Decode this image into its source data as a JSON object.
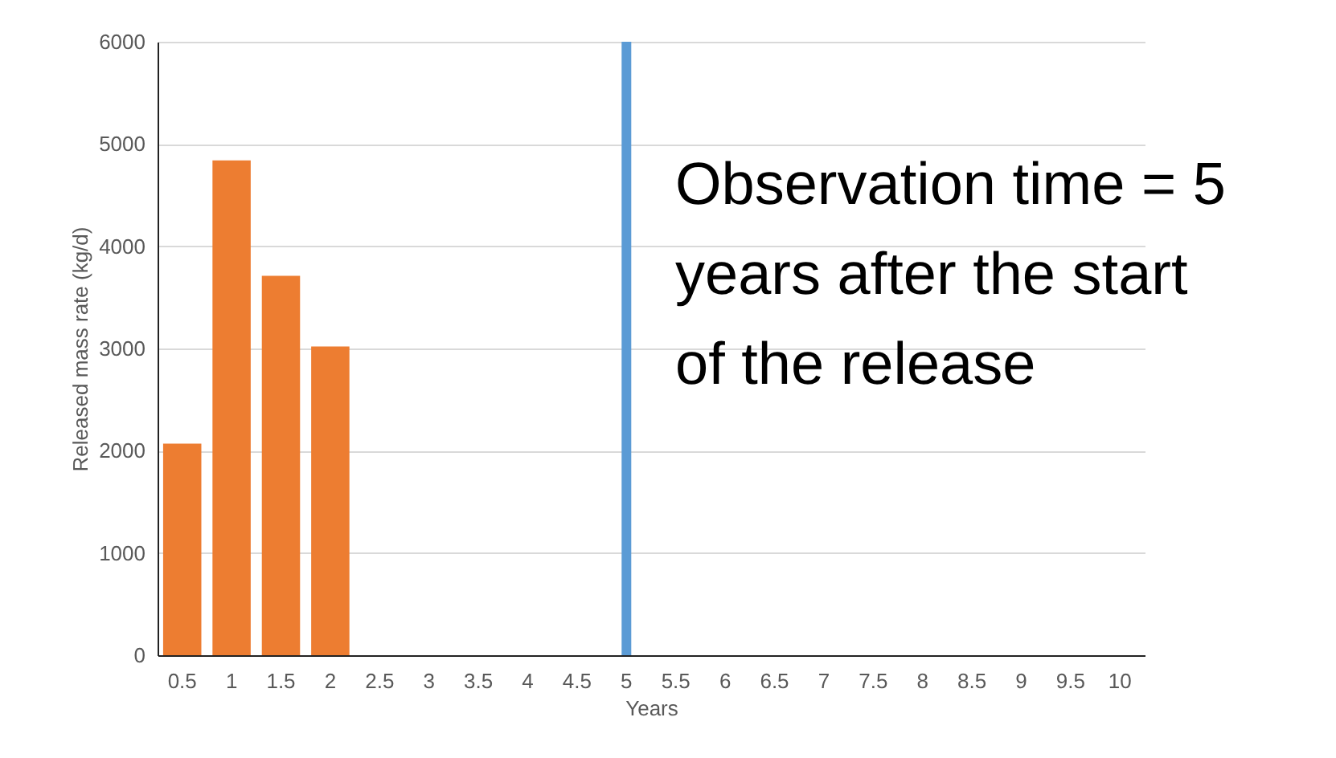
{
  "chart_data": {
    "type": "bar",
    "xlabel": "Years",
    "ylabel": "Released mass rate (kg/d)",
    "categories": [
      "0.5",
      "1",
      "1.5",
      "2",
      "2.5",
      "3",
      "3.5",
      "4",
      "4.5",
      "5",
      "5.5",
      "6",
      "6.5",
      "7",
      "7.5",
      "8",
      "8.5",
      "9",
      "9.5",
      "10"
    ],
    "values": [
      2070,
      4840,
      3710,
      3020,
      0,
      0,
      0,
      0,
      0,
      0,
      0,
      0,
      0,
      0,
      0,
      0,
      0,
      0,
      0,
      0
    ],
    "color": "#ed7d31",
    "ylim": [
      0,
      6000
    ],
    "yticks": [
      0,
      1000,
      2000,
      3000,
      4000,
      5000,
      6000
    ],
    "grid": "y",
    "ref_lines": [
      {
        "axis": "x",
        "value": "5",
        "color": "#5b9bd5"
      }
    ],
    "annotations": [
      "Observation time = 5 years after the start of the release"
    ]
  }
}
